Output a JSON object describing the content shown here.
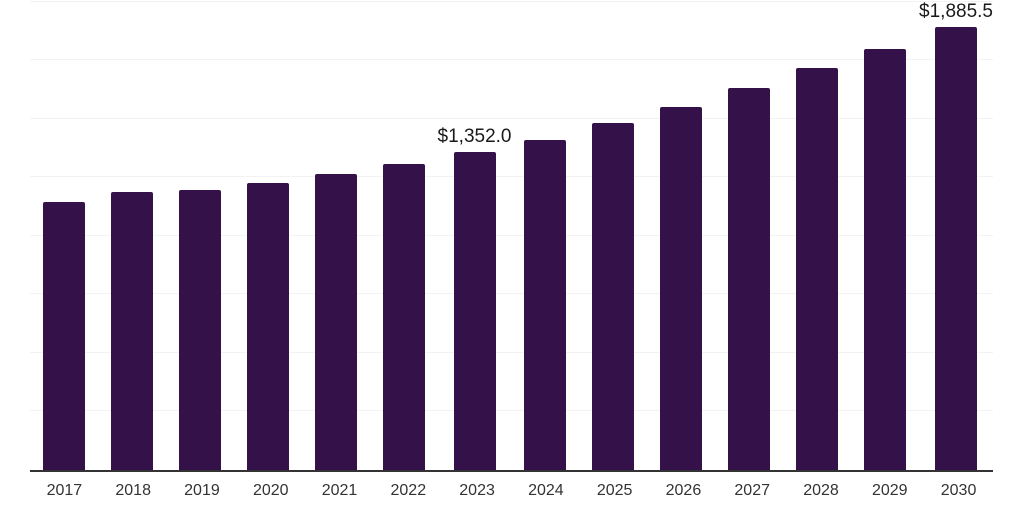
{
  "page": {
    "background": "#ffffff"
  },
  "chart_data": {
    "type": "bar",
    "title": "",
    "xlabel": "",
    "ylabel": "",
    "categories": [
      "2017",
      "2018",
      "2019",
      "2020",
      "2021",
      "2022",
      "2023",
      "2024",
      "2025",
      "2026",
      "2027",
      "2028",
      "2029",
      "2030"
    ],
    "values": [
      1140.0,
      1180.0,
      1190.0,
      1220.0,
      1260.0,
      1300.0,
      1352.0,
      1405.0,
      1475.0,
      1545.0,
      1625.0,
      1710.0,
      1790.0,
      1885.5
    ],
    "data_labels": [
      {
        "index": 6,
        "text": "$1,352.0"
      },
      {
        "index": 13,
        "text": "$1,885.5"
      }
    ],
    "ylim": [
      0,
      2000
    ],
    "gridline_interval": 250,
    "gridlines": true,
    "legend": "none",
    "colors": {
      "bar": "#351149",
      "axis_line": "#333333",
      "gridline": "#f2f2f2",
      "data_label": "#1a1a1a",
      "tick_label": "#333333"
    }
  }
}
